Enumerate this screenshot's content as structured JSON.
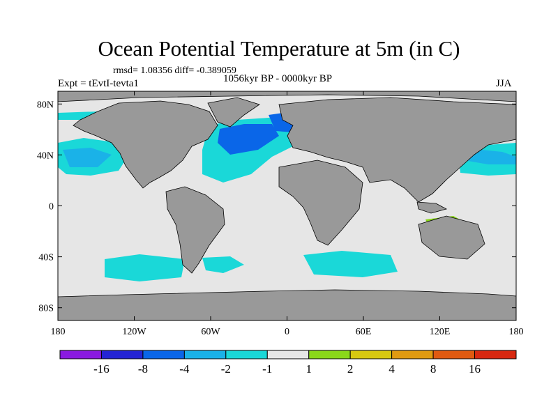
{
  "figure": {
    "title": "Ocean Potential Temperature at 5m (in C)",
    "stats": "rmsd= 1.08356 diff= -0.389059",
    "experiment": "Expt = tEvtI-tevta1",
    "period": "1056kyr BP - 0000kyr BP",
    "season": "JJA"
  },
  "map": {
    "projection": "cylindrical equidistant",
    "lon_range": [
      -180,
      180
    ],
    "lat_range": [
      -90,
      90
    ],
    "x_ticks": [
      {
        "value": -180,
        "label": "180"
      },
      {
        "value": -120,
        "label": "120W"
      },
      {
        "value": -60,
        "label": "60W"
      },
      {
        "value": 0,
        "label": "0"
      },
      {
        "value": 60,
        "label": "60E"
      },
      {
        "value": 120,
        "label": "120E"
      },
      {
        "value": 180,
        "label": "180"
      }
    ],
    "y_ticks": [
      {
        "value": 80,
        "label": "80N"
      },
      {
        "value": 40,
        "label": "40N"
      },
      {
        "value": 0,
        "label": "0"
      },
      {
        "value": -40,
        "label": "40S"
      },
      {
        "value": -80,
        "label": "80S"
      }
    ],
    "colors": {
      "ocean_background": "#e6e6e6",
      "land": "#999999",
      "coast": "#000000"
    }
  },
  "colorbar": {
    "levels": [
      -16,
      -8,
      -4,
      -2,
      -1,
      1,
      2,
      4,
      8,
      16
    ],
    "labels": [
      "-16",
      "-8",
      "-4",
      "-2",
      "-1",
      "1",
      "2",
      "4",
      "8",
      "16"
    ],
    "colors": [
      "#8a1ae0",
      "#2424d4",
      "#0a66e8",
      "#1ab2e8",
      "#1ad8d8",
      "#e6e6e6",
      "#8ad81a",
      "#d8c810",
      "#e09a10",
      "#e05a10",
      "#d82810"
    ]
  }
}
